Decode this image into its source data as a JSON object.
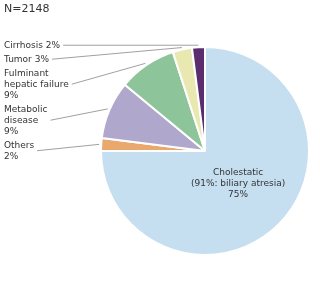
{
  "chart_data": {
    "type": "pie",
    "categories": [
      "Cholestatic\n(91%: biliary atresia)\n75%",
      "Others\n2%",
      "Metabolic\ndisease\n9%",
      "Fulminant\nhepatic failure\n9%",
      "Tumor 3%",
      "Cirrhosis 2%"
    ],
    "values": [
      75,
      2,
      9,
      9,
      3,
      2
    ],
    "colors": [
      "#c5dff0",
      "#e8a86e",
      "#b0a8cc",
      "#8ec49a",
      "#e8e8b0",
      "#5c2d6e"
    ],
    "annotation": "N=2148"
  }
}
